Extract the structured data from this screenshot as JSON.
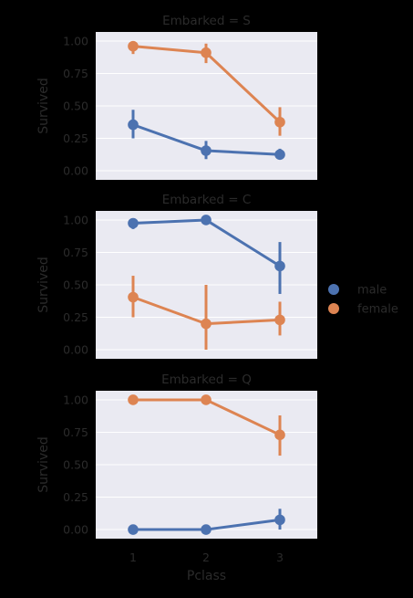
{
  "chart_data": {
    "type": "line",
    "xlabel": "Pclass",
    "ylabel": "Survived",
    "categories": [
      "1",
      "2",
      "3"
    ],
    "yticks": [
      "0.00",
      "0.25",
      "0.50",
      "0.75",
      "1.00"
    ],
    "ylim": [
      -0.07,
      1.07
    ],
    "grid": true,
    "legend_position": "right",
    "legend": [
      {
        "name": "male",
        "color": "#4c72b0"
      },
      {
        "name": "female",
        "color": "#dd8452"
      }
    ],
    "panels": [
      {
        "title": "Embarked = S",
        "series": [
          {
            "name": "male",
            "color": "#4c72b0",
            "values": [
              0.355,
              0.155,
              0.125
            ],
            "ci_low": [
              0.25,
              0.09,
              0.1
            ],
            "ci_high": [
              0.47,
              0.23,
              0.17
            ]
          },
          {
            "name": "female",
            "color": "#dd8452",
            "values": [
              0.96,
              0.91,
              0.375
            ],
            "ci_low": [
              0.9,
              0.83,
              0.27
            ],
            "ci_high": [
              1.0,
              0.98,
              0.49
            ]
          }
        ]
      },
      {
        "title": "Embarked = C",
        "series": [
          {
            "name": "male",
            "color": "#4c72b0",
            "values": [
              0.975,
              1.0,
              0.645
            ],
            "ci_low": [
              0.93,
              1.0,
              0.43
            ],
            "ci_high": [
              1.0,
              1.0,
              0.83
            ]
          },
          {
            "name": "female",
            "color": "#dd8452",
            "values": [
              0.405,
              0.2,
              0.23
            ],
            "ci_low": [
              0.25,
              0.0,
              0.11
            ],
            "ci_high": [
              0.57,
              0.5,
              0.37
            ]
          }
        ]
      },
      {
        "title": "Embarked = Q",
        "series": [
          {
            "name": "male",
            "color": "#4c72b0",
            "values": [
              0.0,
              0.0,
              0.075
            ],
            "ci_low": [
              0.0,
              0.0,
              0.0
            ],
            "ci_high": [
              0.0,
              0.0,
              0.16
            ]
          },
          {
            "name": "female",
            "color": "#dd8452",
            "values": [
              1.0,
              1.0,
              0.73
            ],
            "ci_low": [
              1.0,
              1.0,
              0.57
            ],
            "ci_high": [
              1.0,
              1.0,
              0.88
            ]
          }
        ]
      }
    ]
  }
}
